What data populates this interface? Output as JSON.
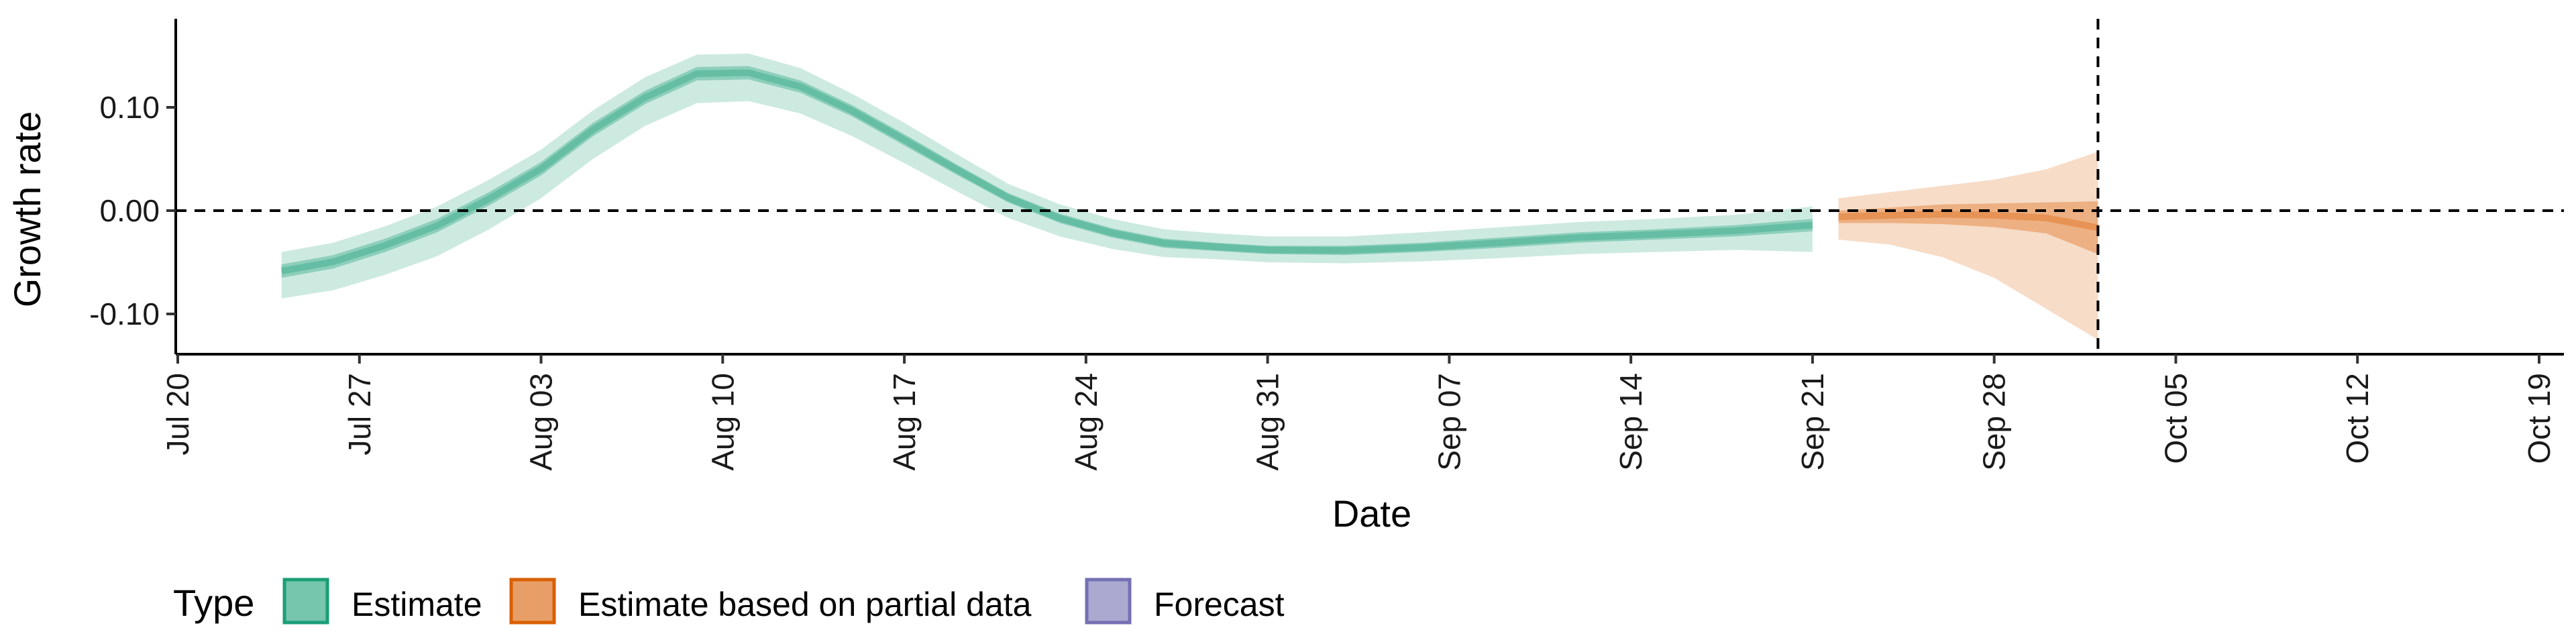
{
  "chart_data": {
    "type": "area",
    "xlabel": "Date",
    "ylabel": "Growth rate",
    "ylim": [
      -0.14,
      0.18
    ],
    "y_ticks": [
      -0.1,
      0.0,
      0.1
    ],
    "y_tick_labels": [
      "-0.10",
      "0.00",
      "0.10"
    ],
    "x_range": [
      "2020-07-20",
      "2020-10-20"
    ],
    "x_ticks": [
      "2020-07-20",
      "2020-07-27",
      "2020-08-03",
      "2020-08-10",
      "2020-08-17",
      "2020-08-24",
      "2020-08-31",
      "2020-09-07",
      "2020-09-14",
      "2020-09-21",
      "2020-09-28",
      "2020-10-05",
      "2020-10-12",
      "2020-10-19"
    ],
    "x_tick_labels": [
      "Jul 20",
      "Jul 27",
      "Aug 03",
      "Aug 10",
      "Aug 17",
      "Aug 24",
      "Aug 31",
      "Sep 07",
      "Sep 14",
      "Sep 21",
      "Sep 28",
      "Oct 05",
      "Oct 12",
      "Oct 19"
    ],
    "reference_line_y": 0.0,
    "forecast_date_line": "2020-10-02",
    "legend": {
      "title": "Type",
      "position": "bottom",
      "entries": [
        {
          "label": "Estimate",
          "color": "#1b9e77"
        },
        {
          "label": "Estimate based on partial data",
          "color": "#d95f02"
        },
        {
          "label": "Forecast",
          "color": "#7570b3"
        }
      ]
    },
    "series": [
      {
        "name": "Estimate",
        "color": "#1b9e77",
        "points": [
          [
            "2020-07-24",
            -0.052,
            -0.065,
            -0.04,
            -0.085,
            -0.02
          ],
          [
            "2020-07-26",
            -0.043,
            -0.056,
            -0.031,
            -0.077,
            -0.011
          ],
          [
            "2020-07-28",
            -0.027,
            -0.04,
            -0.015,
            -0.062,
            0.006
          ],
          [
            "2020-07-30",
            -0.008,
            -0.021,
            0.004,
            -0.044,
            0.024
          ],
          [
            "2020-08-01",
            0.018,
            0.005,
            0.03,
            -0.018,
            0.05
          ],
          [
            "2020-08-03",
            0.047,
            0.034,
            0.059,
            0.012,
            0.08
          ],
          [
            "2020-08-05",
            0.085,
            0.072,
            0.097,
            0.05,
            0.115
          ],
          [
            "2020-08-07",
            0.116,
            0.103,
            0.129,
            0.082,
            0.145
          ],
          [
            "2020-08-09",
            0.139,
            0.126,
            0.151,
            0.104,
            0.166
          ],
          [
            "2020-08-11",
            0.14,
            0.127,
            0.152,
            0.106,
            0.167
          ],
          [
            "2020-08-13",
            0.126,
            0.114,
            0.138,
            0.094,
            0.153
          ],
          [
            "2020-08-15",
            0.102,
            0.091,
            0.113,
            0.072,
            0.127
          ],
          [
            "2020-08-17",
            0.074,
            0.063,
            0.085,
            0.046,
            0.099
          ],
          [
            "2020-08-19",
            0.045,
            0.035,
            0.055,
            0.019,
            0.069
          ],
          [
            "2020-08-21",
            0.017,
            0.008,
            0.026,
            -0.007,
            0.04
          ],
          [
            "2020-08-23",
            -0.003,
            -0.012,
            0.006,
            -0.025,
            0.019
          ],
          [
            "2020-08-25",
            -0.017,
            -0.026,
            -0.008,
            -0.037,
            0.005
          ],
          [
            "2020-08-27",
            -0.027,
            -0.036,
            -0.018,
            -0.045,
            -0.006
          ],
          [
            "2020-08-29",
            -0.031,
            -0.039,
            -0.022,
            -0.047,
            -0.012
          ],
          [
            "2020-08-31",
            -0.034,
            -0.042,
            -0.025,
            -0.05,
            -0.015
          ],
          [
            "2020-09-03",
            -0.034,
            -0.043,
            -0.025,
            -0.051,
            -0.013
          ],
          [
            "2020-09-06",
            -0.031,
            -0.04,
            -0.021,
            -0.049,
            -0.008
          ],
          [
            "2020-09-09",
            -0.026,
            -0.036,
            -0.016,
            -0.046,
            -0.003
          ],
          [
            "2020-09-12",
            -0.021,
            -0.031,
            -0.011,
            -0.042,
            0.003
          ],
          [
            "2020-09-15",
            -0.018,
            -0.028,
            -0.008,
            -0.04,
            0.007
          ],
          [
            "2020-09-18",
            -0.014,
            -0.025,
            -0.004,
            -0.038,
            0.012
          ],
          [
            "2020-09-21",
            -0.008,
            -0.02,
            0.004,
            -0.04,
            0.022
          ]
        ]
      },
      {
        "name": "Estimate based on partial data",
        "color": "#d95f02",
        "points": [
          [
            "2020-09-22",
            0.0,
            -0.012,
            0.012,
            -0.028,
            0.032
          ],
          [
            "2020-09-24",
            0.003,
            -0.012,
            0.018,
            -0.033,
            0.042
          ],
          [
            "2020-09-26",
            0.006,
            -0.013,
            0.024,
            -0.045,
            0.057
          ],
          [
            "2020-09-28",
            0.007,
            -0.016,
            0.03,
            -0.065,
            0.08
          ],
          [
            "2020-09-30",
            0.008,
            -0.022,
            0.04,
            -0.095,
            0.11
          ],
          [
            "2020-10-02",
            0.009,
            -0.042,
            0.057,
            -0.125,
            0.145
          ]
        ]
      },
      {
        "name": "Forecast",
        "color": "#7570b3",
        "points": [
          [
            "2020-10-03",
            0.0,
            -0.018,
            0.022,
            -0.043,
            0.058,
            -0.125,
            0.145
          ],
          [
            "2020-10-17",
            0.0,
            -0.018,
            0.022,
            -0.043,
            0.058,
            -0.125,
            0.145
          ]
        ]
      }
    ]
  }
}
